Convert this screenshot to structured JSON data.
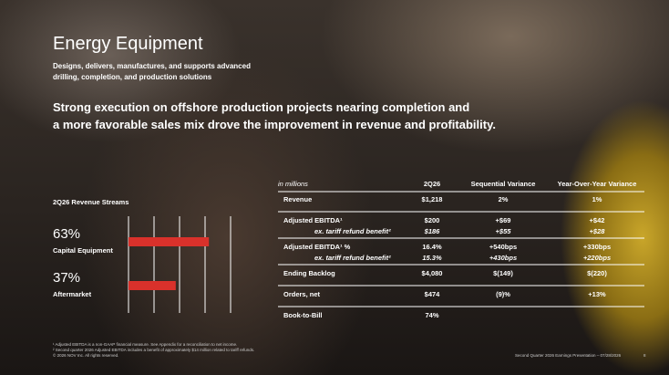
{
  "header": {
    "title": "Energy Equipment",
    "subtitle": [
      "Designs, delivers, manufactures, and supports advanced",
      "drilling, completion, and production solutions"
    ]
  },
  "headline": [
    "Strong execution on offshore production projects nearing completion and",
    "a more favorable sales mix drove the improvement in revenue and profitability."
  ],
  "revenue_streams": {
    "title": "2Q26 Revenue Streams",
    "color": "#d9312b",
    "xlim": [
      0,
      80
    ],
    "xticks": [
      0,
      20,
      40,
      60,
      80
    ],
    "items": [
      {
        "name": "Capital Equipment",
        "value": 63,
        "value_label": "63%"
      },
      {
        "name": "Aftermarket",
        "value": 37,
        "value_label": "37%"
      }
    ]
  },
  "table": {
    "columns": [
      "in millions",
      "2Q26",
      "Sequential Variance",
      "Year-Over-Year Variance"
    ],
    "rows": [
      {
        "main": [
          "Revenue",
          "$1,218",
          "2%",
          "1%"
        ]
      },
      {
        "main": [
          "Adjusted EBITDA¹",
          "$200",
          "+$69",
          "+$42"
        ],
        "sub": [
          "ex. tariff refund benefit²",
          "$186",
          "+$55",
          "+$28"
        ]
      },
      {
        "main": [
          "Adjusted EBITDA¹ %",
          "16.4%",
          "+540bps",
          "+330bps"
        ],
        "sub": [
          "ex. tariff refund benefit²",
          "15.3%",
          "+430bps",
          "+220bps"
        ]
      },
      {
        "main": [
          "Ending Backlog",
          "$4,080",
          "$(149)",
          "$(220)"
        ]
      },
      {
        "main": [
          "Orders, net",
          "$474",
          "(9)%",
          "+13%"
        ]
      },
      {
        "main": [
          "Book-to-Bill",
          "74%"
        ]
      }
    ]
  },
  "footnotes": [
    "¹ Adjusted EBITDA is a non-GAAP financial measure. See Appendix for a reconciliation to net income.",
    "² Second quarter 2026 Adjusted EBITDA includes a benefit of approximately $14 million related to tariff refunds.",
    "© 2026 NOV Inc. All rights reserved."
  ],
  "footer": {
    "text": "Second Quarter 2026 Earnings Presentation – 07/28/2026",
    "page": "8"
  }
}
